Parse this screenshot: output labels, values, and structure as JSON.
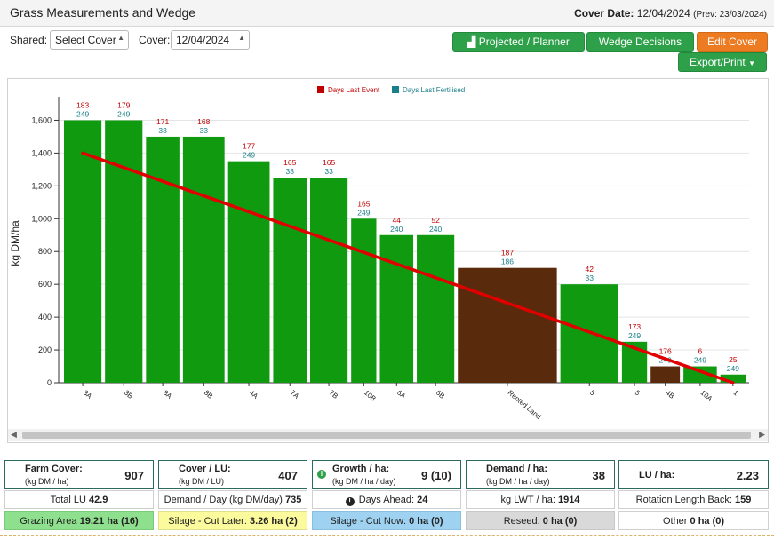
{
  "header": {
    "title": "Grass Measurements and Wedge",
    "cover_date_label": "Cover Date:",
    "cover_date_value": "12/04/2024",
    "prev_text": "(Prev: 23/03/2024)"
  },
  "controls": {
    "shared_label": "Shared:",
    "shared_value": "Select Cover",
    "cover_label": "Cover:",
    "cover_value": "12/04/2024",
    "projected_label": "Projected / Planner",
    "wedge_label": "Wedge Decisions",
    "edit_label": "Edit Cover",
    "export_label": "Export/Print"
  },
  "icons": {
    "chart": "bar-chart-icon",
    "caret": "chevron-down-icon",
    "info": "info-icon",
    "clock": "clock-icon"
  },
  "colors": {
    "grazing_bar": "#109a10",
    "silage_bar": "#5a2a0c",
    "trend_line": "#e00000",
    "days_last_event": "#c00000",
    "days_last_fertilised": "#1a7f88"
  },
  "chart_data": {
    "type": "bar",
    "ylabel": "kg DM/ha",
    "ylim": [
      0,
      1700
    ],
    "yticks": [
      0,
      200,
      400,
      600,
      800,
      1000,
      1200,
      1400,
      1600
    ],
    "grid": true,
    "legend": [
      {
        "name": "Days Last Event",
        "color": "#c00000"
      },
      {
        "name": "Days Last Fertilised",
        "color": "#1a7f88"
      }
    ],
    "legend_position": "top-center",
    "bars": [
      {
        "label": "3A",
        "value": 1600,
        "width": 1.0,
        "kind": "grazing",
        "event": "183",
        "fert": "249"
      },
      {
        "label": "3B",
        "value": 1600,
        "width": 1.0,
        "kind": "grazing",
        "event": "179",
        "fert": "249"
      },
      {
        "label": "8A",
        "value": 1500,
        "width": 0.9,
        "kind": "grazing",
        "event": "171",
        "fert": "33"
      },
      {
        "label": "8B",
        "value": 1500,
        "width": 1.1,
        "kind": "grazing",
        "event": "168",
        "fert": "33"
      },
      {
        "label": "4A",
        "value": 1350,
        "width": 1.1,
        "kind": "grazing",
        "event": "177",
        "fert": "249"
      },
      {
        "label": "7A",
        "value": 1250,
        "width": 0.9,
        "kind": "grazing",
        "event": "165",
        "fert": "33"
      },
      {
        "label": "7B",
        "value": 1250,
        "width": 1.0,
        "kind": "grazing",
        "event": "165",
        "fert": "33"
      },
      {
        "label": "10B",
        "value": 1000,
        "width": 0.7,
        "kind": "grazing",
        "event": "165",
        "fert": "249"
      },
      {
        "label": "6A",
        "value": 900,
        "width": 0.9,
        "kind": "grazing",
        "event": "44",
        "fert": "240"
      },
      {
        "label": "6B",
        "value": 900,
        "width": 1.0,
        "kind": "grazing",
        "event": "52",
        "fert": "240"
      },
      {
        "label": "Rented Land",
        "value": 700,
        "width": 2.5,
        "kind": "silage",
        "event": "187",
        "fert": "186"
      },
      {
        "label": "5",
        "value": 600,
        "width": 1.5,
        "kind": "grazing",
        "event": "42",
        "fert": "33"
      },
      {
        "label": "5",
        "value": 250,
        "width": 0.7,
        "kind": "grazing",
        "event": "173",
        "fert": "249"
      },
      {
        "label": "4B",
        "value": 100,
        "width": 0.8,
        "kind": "silage",
        "event": "176",
        "fert": "249"
      },
      {
        "label": "10A",
        "value": 100,
        "width": 0.9,
        "kind": "grazing",
        "event": "6",
        "fert": "249"
      },
      {
        "label": "1",
        "value": 50,
        "width": 0.7,
        "kind": "grazing",
        "event": "25",
        "fert": "249"
      }
    ],
    "target_line": {
      "start": 1400,
      "end": 0
    }
  },
  "stats": {
    "farm_cover": {
      "label": "Farm Cover:",
      "unit": "(kg DM / ha)",
      "value": "907"
    },
    "cover_lu": {
      "label": "Cover / LU:",
      "unit": "(kg DM / LU)",
      "value": "407"
    },
    "growth": {
      "label": "Growth / ha:",
      "unit": "(kg DM / ha / day)",
      "value": "9 (10)"
    },
    "demand": {
      "label": "Demand / ha:",
      "unit": "(kg DM / ha / day)",
      "value": "38"
    },
    "lu_ha": {
      "label": "LU / ha:",
      "value": "2.23"
    }
  },
  "summary": {
    "total_lu_label": "Total LU",
    "total_lu_value": "42.9",
    "demand_day_label": "Demand / Day (kg DM/day)",
    "demand_day_value": "735",
    "days_ahead_label": "Days Ahead:",
    "days_ahead_value": "24",
    "lwt_label": "kg LWT / ha:",
    "lwt_value": "1914",
    "rotation_label": "Rotation Length Back:",
    "rotation_value": "159"
  },
  "areas": {
    "grazing_label": "Grazing Area",
    "grazing_value": "19.21 ha (16)",
    "silage_later_label": "Silage - Cut Later:",
    "silage_later_value": "3.26 ha (2)",
    "silage_now_label": "Silage - Cut Now:",
    "silage_now_value": "0 ha (0)",
    "reseed_label": "Reseed:",
    "reseed_value": "0 ha (0)",
    "other_label": "Other",
    "other_value": "0 ha (0)"
  }
}
